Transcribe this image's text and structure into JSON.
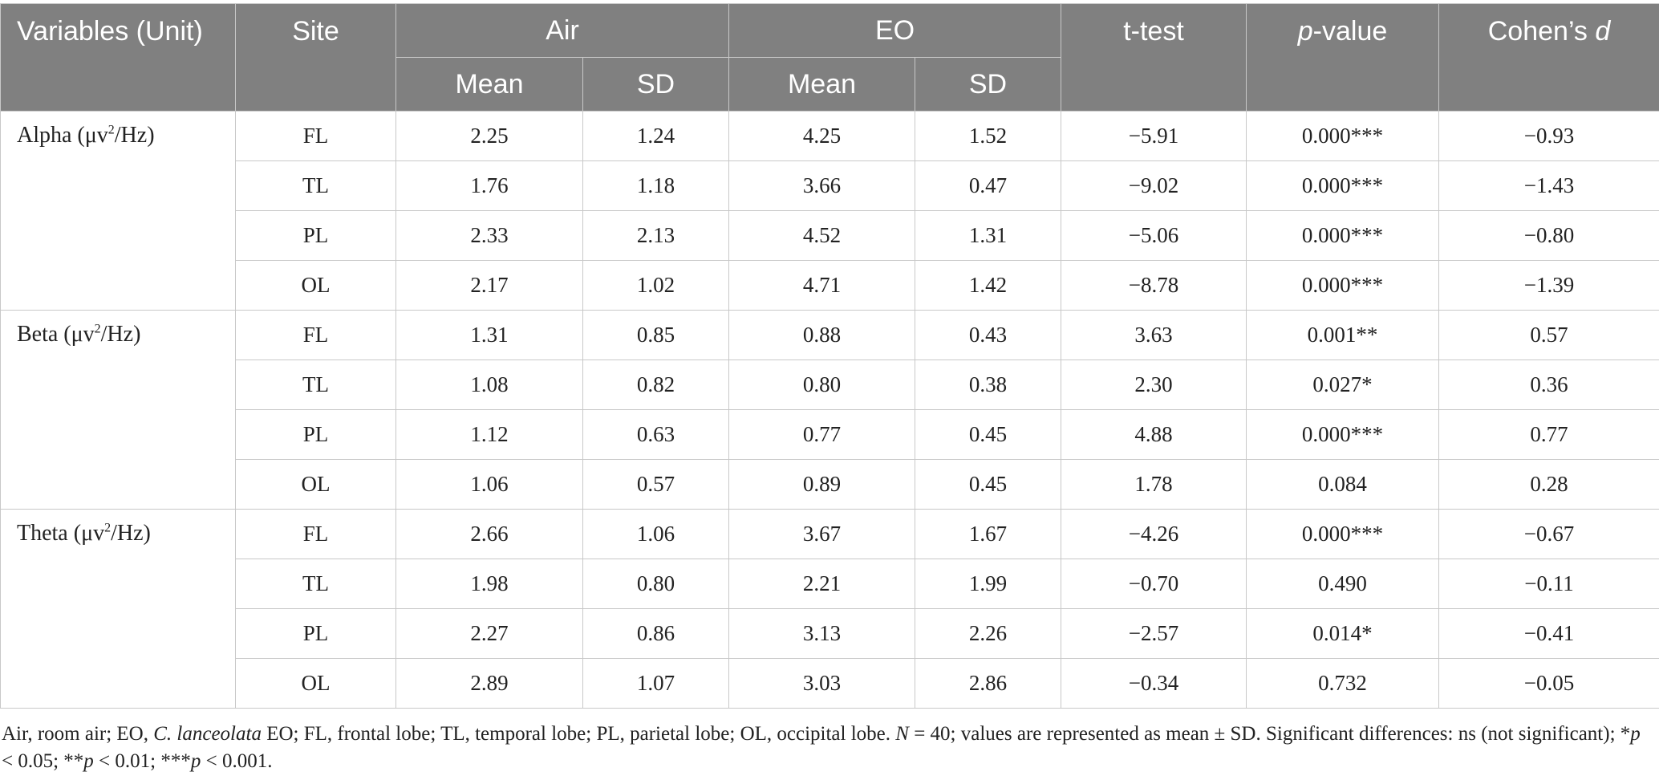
{
  "header": {
    "variables": "Variables (Unit)",
    "site": "Site",
    "air": "Air",
    "eo": "EO",
    "ttest": "t-test",
    "pvalue_italic": "p",
    "pvalue_rest": "-value",
    "cohen_prefix": "Cohen’s ",
    "cohen_italic": "d",
    "mean": "Mean",
    "sd": "SD"
  },
  "groups": [
    {
      "label_main": "Alpha (μv",
      "label_sup": "2",
      "label_tail": "/Hz)",
      "rows": [
        {
          "site": "FL",
          "air_mean": "2.25",
          "air_sd": "1.24",
          "eo_mean": "4.25",
          "eo_sd": "1.52",
          "t": "−5.91",
          "p": "0.000***",
          "d": "−0.93"
        },
        {
          "site": "TL",
          "air_mean": "1.76",
          "air_sd": "1.18",
          "eo_mean": "3.66",
          "eo_sd": "0.47",
          "t": "−9.02",
          "p": "0.000***",
          "d": "−1.43"
        },
        {
          "site": "PL",
          "air_mean": "2.33",
          "air_sd": "2.13",
          "eo_mean": "4.52",
          "eo_sd": "1.31",
          "t": "−5.06",
          "p": "0.000***",
          "d": "−0.80"
        },
        {
          "site": "OL",
          "air_mean": "2.17",
          "air_sd": "1.02",
          "eo_mean": "4.71",
          "eo_sd": "1.42",
          "t": "−8.78",
          "p": "0.000***",
          "d": "−1.39"
        }
      ]
    },
    {
      "label_main": "Beta (μv",
      "label_sup": "2",
      "label_tail": "/Hz)",
      "rows": [
        {
          "site": "FL",
          "air_mean": "1.31",
          "air_sd": "0.85",
          "eo_mean": "0.88",
          "eo_sd": "0.43",
          "t": "3.63",
          "p": "0.001**",
          "d": "0.57"
        },
        {
          "site": "TL",
          "air_mean": "1.08",
          "air_sd": "0.82",
          "eo_mean": "0.80",
          "eo_sd": "0.38",
          "t": "2.30",
          "p": "0.027*",
          "d": "0.36"
        },
        {
          "site": "PL",
          "air_mean": "1.12",
          "air_sd": "0.63",
          "eo_mean": "0.77",
          "eo_sd": "0.45",
          "t": "4.88",
          "p": "0.000***",
          "d": "0.77"
        },
        {
          "site": "OL",
          "air_mean": "1.06",
          "air_sd": "0.57",
          "eo_mean": "0.89",
          "eo_sd": "0.45",
          "t": "1.78",
          "p": "0.084",
          "d": "0.28"
        }
      ]
    },
    {
      "label_main": "Theta (μv",
      "label_sup": "2",
      "label_tail": "/Hz)",
      "rows": [
        {
          "site": "FL",
          "air_mean": "2.66",
          "air_sd": "1.06",
          "eo_mean": "3.67",
          "eo_sd": "1.67",
          "t": "−4.26",
          "p": "0.000***",
          "d": "−0.67"
        },
        {
          "site": "TL",
          "air_mean": "1.98",
          "air_sd": "0.80",
          "eo_mean": "2.21",
          "eo_sd": "1.99",
          "t": "−0.70",
          "p": "0.490",
          "d": "−0.11"
        },
        {
          "site": "PL",
          "air_mean": "2.27",
          "air_sd": "0.86",
          "eo_mean": "3.13",
          "eo_sd": "2.26",
          "t": "−2.57",
          "p": "0.014*",
          "d": "−0.41"
        },
        {
          "site": "OL",
          "air_mean": "2.89",
          "air_sd": "1.07",
          "eo_mean": "3.03",
          "eo_sd": "2.86",
          "t": "−0.34",
          "p": "0.732",
          "d": "−0.05"
        }
      ]
    }
  ],
  "footnote": {
    "part1": "Air, room air; EO, ",
    "species": "C. lanceolata",
    "part2": " EO; FL, frontal lobe; TL, temporal lobe; PL, parietal lobe; OL, occipital lobe. ",
    "n_italic": "N",
    "part3": " = 40; values are represented as mean ± SD. Significant differences: ns (not significant); *",
    "p1": "p",
    "part4": " < 0.05; **",
    "p2": "p",
    "part5": " < 0.01; ***",
    "p3": "p",
    "part6": " < 0.001."
  },
  "colors": {
    "header_bg": "#808080",
    "header_text": "#ffffff",
    "border": "#c8c8c8",
    "body_text": "#222222"
  }
}
